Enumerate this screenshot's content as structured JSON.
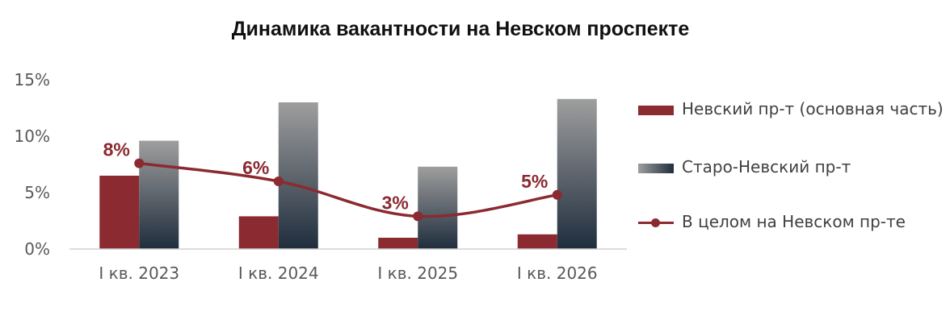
{
  "chart_data": {
    "type": "bar",
    "title": "Динамика вакантности на Невском проспекте",
    "categories": [
      "I кв. 2023",
      "I кв. 2024",
      "I кв. 2025",
      "I кв. 2026"
    ],
    "ylim": [
      0,
      15
    ],
    "yticks": [
      {
        "value": 0,
        "label": "0%"
      },
      {
        "value": 5,
        "label": "5%"
      },
      {
        "value": 10,
        "label": "10%"
      },
      {
        "value": 15,
        "label": "15%"
      }
    ],
    "grid": false,
    "legend_position": "right",
    "series": [
      {
        "name": "Невский пр-т (основная часть)",
        "kind": "bar",
        "color": "#8b2a30",
        "values": [
          6.5,
          2.9,
          1.0,
          1.3
        ]
      },
      {
        "name": "Старо-Невский пр-т",
        "kind": "bar",
        "color_top": "#9e9e9e",
        "color_bottom": "#1f2d3d",
        "values": [
          9.6,
          13.0,
          7.3,
          13.3
        ]
      },
      {
        "name": "В целом на Невском пр-те",
        "kind": "line",
        "color": "#8b2a30",
        "values": [
          7.6,
          6.0,
          2.9,
          4.8
        ],
        "data_labels": [
          "8%",
          "6%",
          "3%",
          "5%"
        ]
      }
    ]
  }
}
